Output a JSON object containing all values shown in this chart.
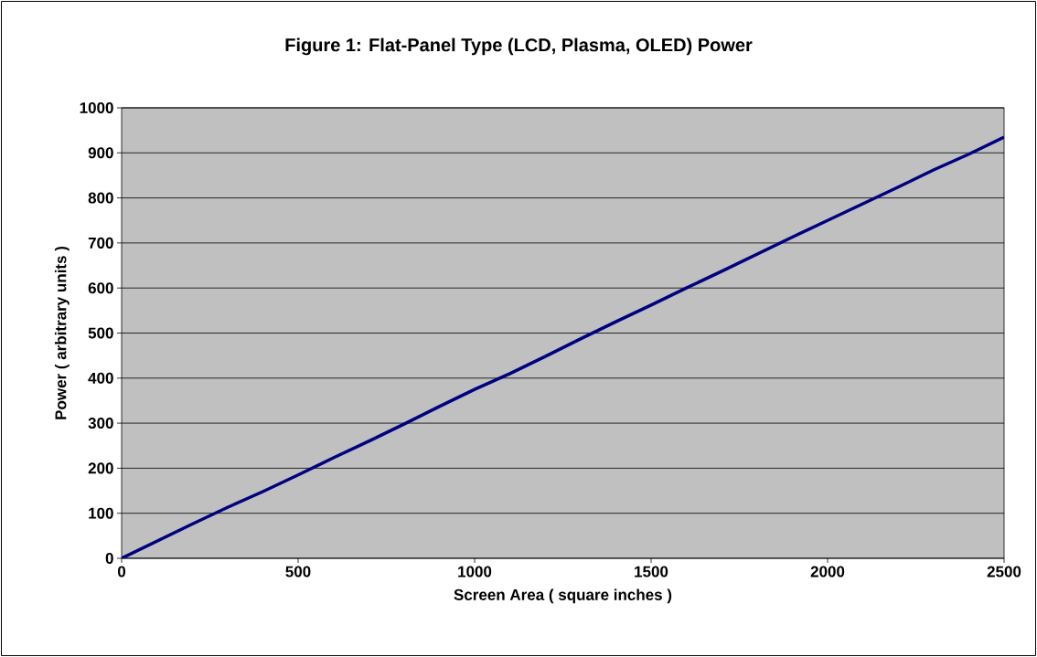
{
  "chart_data": {
    "type": "line",
    "title": "Figure 1: Flat-Panel Type (LCD, Plasma, OLED) Power",
    "xlabel": "Screen Area ( square inches )",
    "ylabel": "Power ( arbitrary units )",
    "x": [
      0,
      100,
      200,
      300,
      400,
      500,
      600,
      700,
      800,
      900,
      1000,
      1100,
      1200,
      1300,
      1400,
      1500,
      1600,
      1700,
      1800,
      1900,
      2000,
      2100,
      2200,
      2300,
      2400,
      2500
    ],
    "series": [
      {
        "color": "#000080",
        "values": [
          0,
          38,
          76,
          113,
          148,
          185,
          223,
          260,
          298,
          337,
          375,
          410,
          448,
          487,
          525,
          562,
          600,
          637,
          675,
          713,
          750,
          787,
          824,
          862,
          897,
          935
        ]
      }
    ],
    "xlim": [
      0,
      2500
    ],
    "ylim": [
      0,
      1000
    ],
    "xticks": [
      0,
      500,
      1000,
      1500,
      2000,
      2500
    ],
    "yticks": [
      0,
      100,
      200,
      300,
      400,
      500,
      600,
      700,
      800,
      900,
      1000
    ],
    "grid": "y",
    "marker": "none",
    "line_style": "solid"
  }
}
